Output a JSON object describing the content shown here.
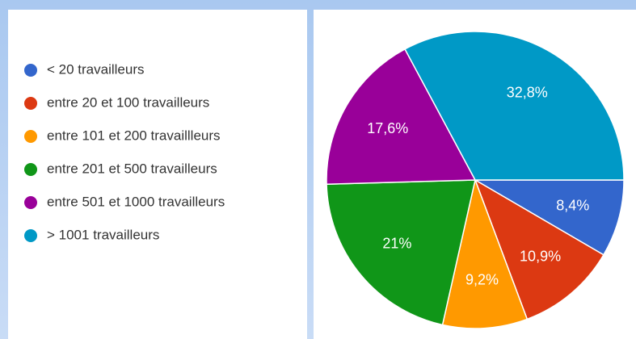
{
  "chart_data": {
    "type": "pie",
    "categories": [
      "< 20 travailleurs",
      "entre 20 et 100 travailleurs",
      "entre 101 et 200 travaillleurs",
      "entre 201 et 500 travailleurs",
      "entre 501 et 1000 travailleurs",
      "> 1001 travailleurs"
    ],
    "values": [
      8.4,
      10.9,
      9.2,
      21,
      17.6,
      32.8
    ],
    "value_labels": [
      "8,4%",
      "10,9%",
      "9,2%",
      "21%",
      "17,6%",
      "32,8%"
    ],
    "colors": [
      "#3366cc",
      "#dc3912",
      "#ff9900",
      "#109618",
      "#990099",
      "#0099c6"
    ],
    "legend": "left"
  }
}
